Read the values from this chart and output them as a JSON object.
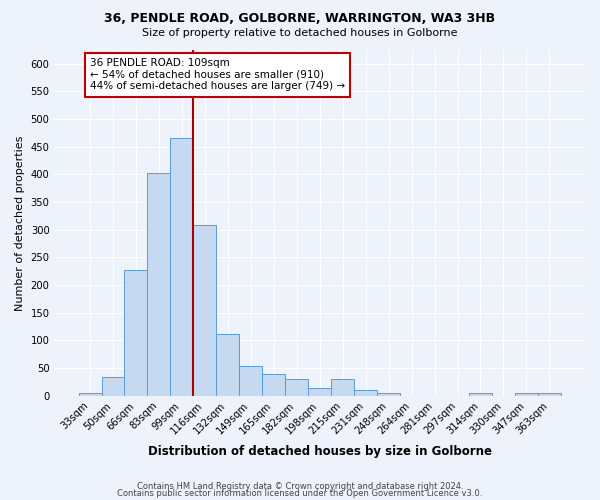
{
  "title": "36, PENDLE ROAD, GOLBORNE, WARRINGTON, WA3 3HB",
  "subtitle": "Size of property relative to detached houses in Golborne",
  "xlabel": "Distribution of detached houses by size in Golborne",
  "ylabel": "Number of detached properties",
  "bar_labels": [
    "33sqm",
    "50sqm",
    "66sqm",
    "83sqm",
    "99sqm",
    "116sqm",
    "132sqm",
    "149sqm",
    "165sqm",
    "182sqm",
    "198sqm",
    "215sqm",
    "231sqm",
    "248sqm",
    "264sqm",
    "281sqm",
    "297sqm",
    "314sqm",
    "330sqm",
    "347sqm",
    "363sqm"
  ],
  "bar_values": [
    5,
    33,
    228,
    402,
    465,
    308,
    112,
    54,
    39,
    30,
    14,
    30,
    10,
    5,
    0,
    0,
    0,
    5,
    0,
    5,
    5
  ],
  "bar_color": "#c5daf0",
  "bar_edge_color": "#5b9bd5",
  "vline_color": "#aa0000",
  "annotation_text": "36 PENDLE ROAD: 109sqm\n← 54% of detached houses are smaller (910)\n44% of semi-detached houses are larger (749) →",
  "annotation_box_color": "#ffffff",
  "annotation_box_edge": "#bb0000",
  "ylim": [
    0,
    625
  ],
  "yticks": [
    0,
    50,
    100,
    150,
    200,
    250,
    300,
    350,
    400,
    450,
    500,
    550,
    600
  ],
  "footer1": "Contains HM Land Registry data © Crown copyright and database right 2024.",
  "footer2": "Contains public sector information licensed under the Open Government Licence v3.0.",
  "bg_color": "#eef2fb",
  "grid_color": "#ffffff"
}
